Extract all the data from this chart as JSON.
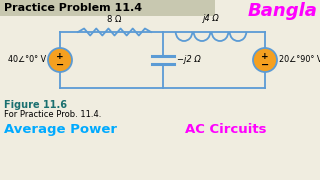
{
  "title": "Practice Problem 11.4",
  "bangla_text": "Bangla",
  "figure_label": "Figure 11.6",
  "figure_caption": "For Practice Prob. 11.4.",
  "bottom_left": "Average Power",
  "bottom_right": "AC Circuits",
  "label_left_source": "40∠°0° V",
  "label_right_source": "20∠°90° V",
  "label_R": "8 Ω",
  "label_L": "j4 Ω",
  "label_C": "−j2 Ω",
  "bg_color": "#f0ede0",
  "title_bg": "#c8c8b0",
  "title_color": "#000000",
  "bangla_color": "#ff00ff",
  "source_fill": "#f5a020",
  "wire_color": "#5b9bd5",
  "component_color": "#5b9bd5",
  "figure_label_color": "#1a7070",
  "bottom_left_color": "#00aaff",
  "bottom_right_color": "#ff00ff",
  "text_color": "#000000"
}
